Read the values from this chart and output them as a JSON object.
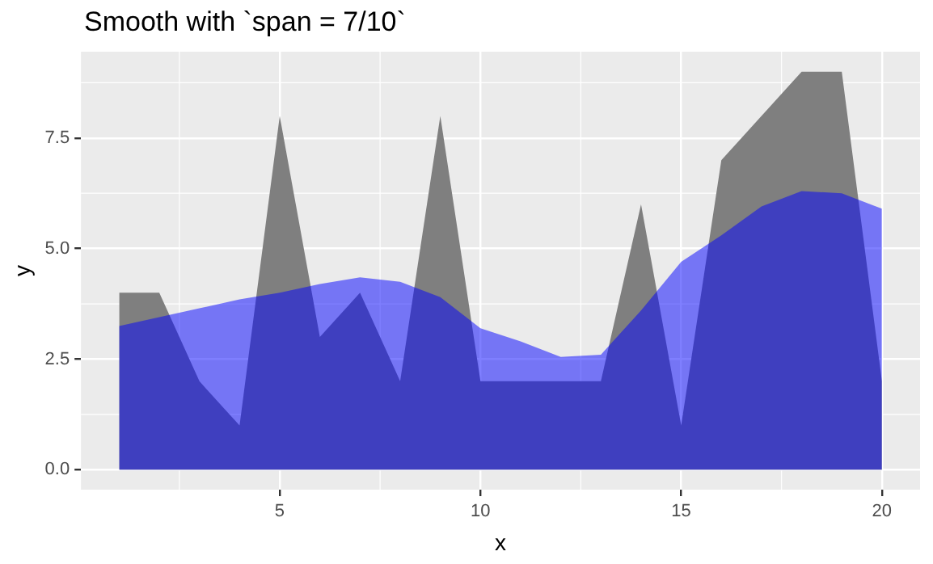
{
  "chart_data": {
    "type": "area",
    "title": "Smooth with `span = 7/10`",
    "xlabel": "x",
    "ylabel": "y",
    "x": [
      1,
      2,
      3,
      4,
      5,
      6,
      7,
      8,
      9,
      10,
      11,
      12,
      13,
      14,
      15,
      16,
      17,
      18,
      19,
      20
    ],
    "series": [
      {
        "color": "#7f7f7f",
        "values": [
          4,
          4,
          2,
          1,
          8,
          3,
          4,
          2,
          8,
          2,
          2,
          2,
          2,
          6,
          1,
          7,
          8,
          9,
          9,
          2
        ]
      },
      {
        "color": "#0000ff",
        "values": [
          3.25,
          3.45,
          3.65,
          3.85,
          4.0,
          4.2,
          4.35,
          4.25,
          3.9,
          3.2,
          2.9,
          2.55,
          2.6,
          3.6,
          4.7,
          5.3,
          5.95,
          6.3,
          6.25,
          5.9
        ]
      }
    ],
    "xlim": [
      0.05,
      20.95
    ],
    "xticks": [
      5,
      10,
      15,
      20
    ],
    "ylim": [
      -0.45,
      9.45
    ],
    "yticks": [
      {
        "value": 0,
        "label": "0.0"
      },
      {
        "value": 2.5,
        "label": "2.5"
      },
      {
        "value": 5,
        "label": "5.0"
      },
      {
        "value": 7.5,
        "label": "7.5"
      }
    ],
    "grid": true,
    "legend": false
  }
}
